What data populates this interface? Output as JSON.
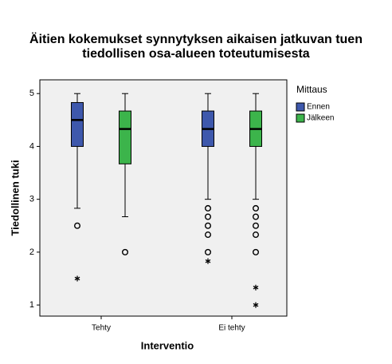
{
  "chart_data": {
    "type": "boxplot",
    "title": [
      "Äitien kokemukset synnytyksen aikaisen jatkuvan tuen",
      "tiedollisen osa-alueen toteutumisesta"
    ],
    "x_label": "Interventio",
    "y_label": "Tiedollinen tuki",
    "categories": [
      "Tehty",
      "Ei tehty"
    ],
    "legend_title": "Mittaus",
    "ylim": [
      0.79,
      5.26
    ],
    "yticks": [
      1,
      2,
      3,
      4,
      5
    ],
    "series": [
      {
        "name": "Ennen",
        "color": "#3e58ac",
        "boxes": [
          {
            "min": 2.83,
            "q1": 4,
            "median": 4.5,
            "q3": 4.83,
            "max": 5,
            "outliers": [
              2.5
            ],
            "extremes": [
              1.5
            ]
          },
          {
            "min": 3,
            "q1": 4,
            "median": 4.33,
            "q3": 4.67,
            "max": 5,
            "outliers": [
              2.83,
              2.67,
              2.5,
              2.33,
              2
            ],
            "extremes": [
              1.83
            ]
          }
        ]
      },
      {
        "name": "Jälkeen",
        "color": "#3cb44b",
        "boxes": [
          {
            "min": 2.67,
            "q1": 3.67,
            "median": 4.33,
            "q3": 4.67,
            "max": 5,
            "outliers": [
              2
            ],
            "extremes": []
          },
          {
            "min": 3,
            "q1": 4,
            "median": 4.33,
            "q3": 4.67,
            "max": 5,
            "outliers": [
              2.83,
              2.67,
              2.5,
              2.33,
              2
            ],
            "extremes": [
              1.33,
              1
            ]
          }
        ]
      }
    ]
  }
}
